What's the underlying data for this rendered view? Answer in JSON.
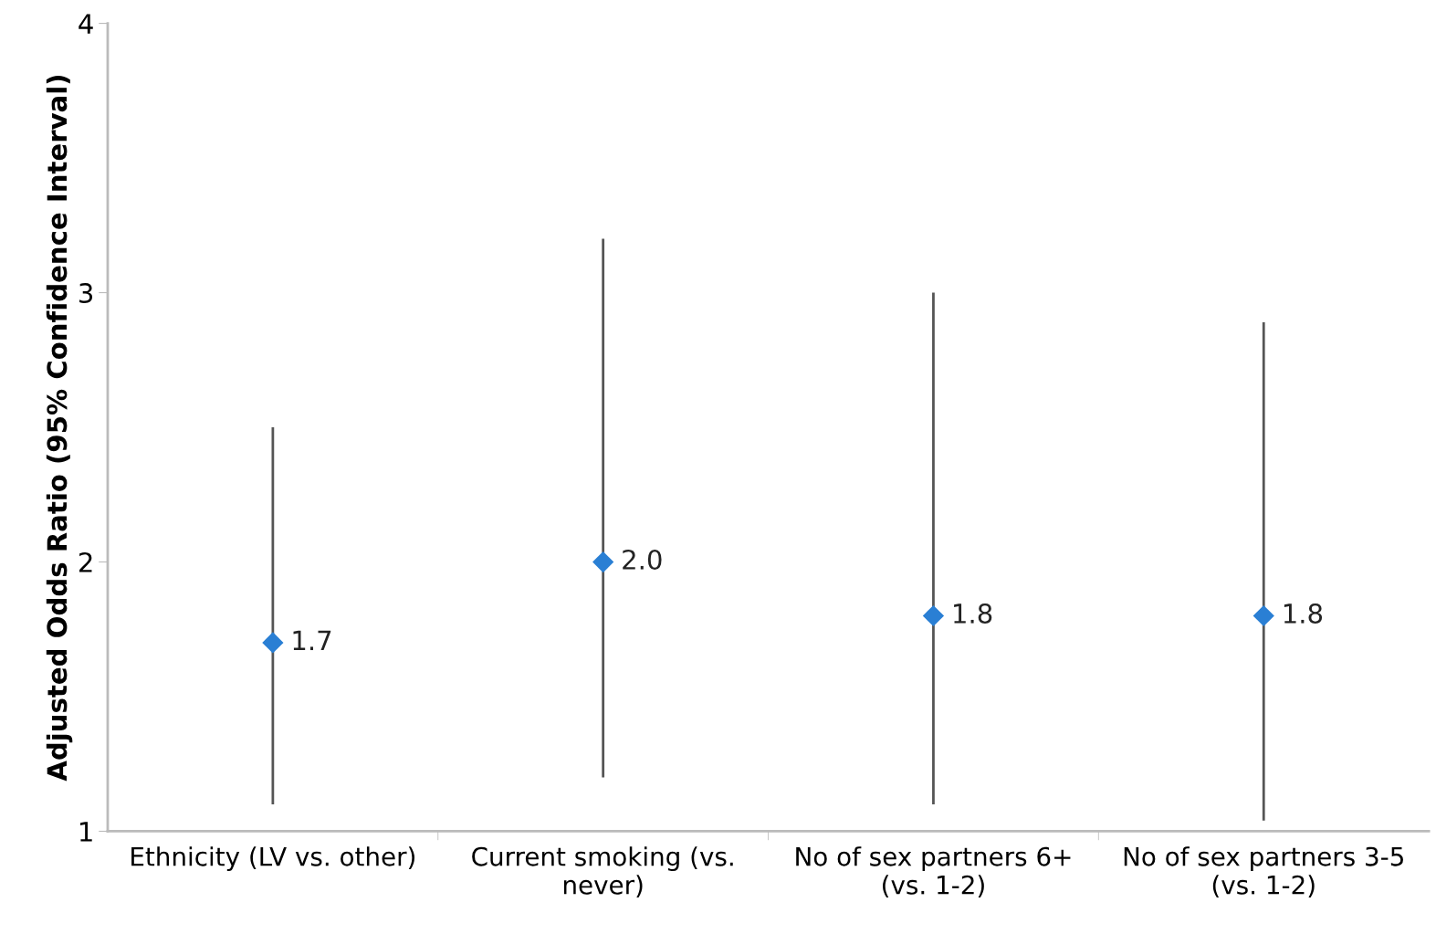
{
  "chart_data": {
    "type": "scatter",
    "ylabel": "Adjusted Odds Ratio (95% Confidence Interval)",
    "categories": [
      "Ethnicity (LV vs. other)",
      "Current smoking (vs.\nnever)",
      "No of sex partners 6+\n(vs. 1-2)",
      "No of sex partners 3-5\n(vs. 1-2)"
    ],
    "values": [
      1.7,
      2.0,
      1.8,
      1.8
    ],
    "value_labels": [
      "1.7",
      "2.0",
      "1.8",
      "1.8"
    ],
    "errors": [
      [
        1.1,
        2.5
      ],
      [
        1.2,
        3.2
      ],
      [
        1.1,
        3.0
      ],
      [
        1.04,
        2.89
      ]
    ],
    "color": "#2a7fd4",
    "marker": "diamond",
    "ylim": [
      1,
      4
    ],
    "yticks": [
      1,
      2,
      3,
      4
    ],
    "grid": false
  }
}
